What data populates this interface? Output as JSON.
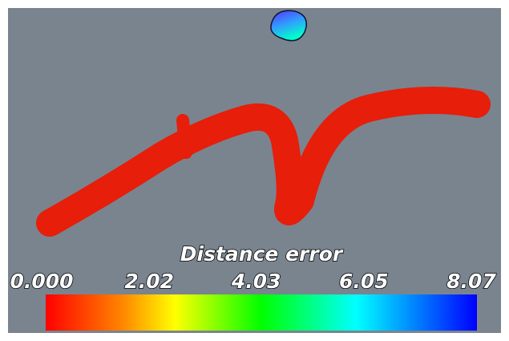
{
  "colorbar": {
    "title": "Distance error",
    "ticks": [
      {
        "value": 0,
        "label": "0.000"
      },
      2.02,
      4.03,
      6.05,
      8.07
    ]
  }
}
